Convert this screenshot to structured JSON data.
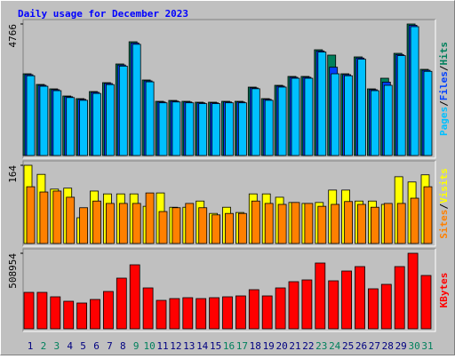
{
  "chart_data": [
    {
      "type": "bar",
      "title": "Daily usage for December 2023",
      "legend_separator": "/",
      "ylim": [
        0,
        4766
      ],
      "yticks": [
        4766
      ],
      "series": [
        {
          "name": "Hits",
          "color": "#00805c",
          "values": [
            2962,
            2576,
            2415,
            2157,
            2061,
            2318,
            2640,
            3317,
            4122,
            2737,
            1964,
            1996,
            1964,
            1932,
            1932,
            1964,
            1964,
            2479,
            2061,
            2544,
            2866,
            2866,
            3832,
            3639,
            2962,
            3574,
            2415,
            2801,
            3703,
            4766,
            3123
          ]
        },
        {
          "name": "Files",
          "color": "#0040ff",
          "values": [
            2930,
            2545,
            2385,
            2130,
            2035,
            2290,
            2610,
            3280,
            4080,
            2705,
            1940,
            1970,
            1940,
            1910,
            1910,
            1940,
            1940,
            2450,
            2035,
            2515,
            2835,
            2835,
            3790,
            3200,
            2930,
            3535,
            2385,
            2660,
            3660,
            4720,
            3090
          ]
        },
        {
          "name": "Pages",
          "color": "#00c0ff",
          "values": [
            2890,
            2510,
            2350,
            2100,
            2000,
            2250,
            2570,
            3240,
            4030,
            2670,
            1910,
            1940,
            1910,
            1880,
            1880,
            1910,
            1910,
            2420,
            2000,
            2480,
            2800,
            2800,
            3750,
            2962,
            2890,
            3490,
            2350,
            2544,
            3620,
            4670,
            3050
          ]
        }
      ]
    },
    {
      "type": "bar",
      "legend_separator": "/",
      "ylim": [
        0,
        164
      ],
      "yticks": [
        164
      ],
      "series": [
        {
          "name": "Visits",
          "color": "#ffff00",
          "values": [
            164,
            145,
            114,
            116,
            54,
            110,
            104,
            104,
            104,
            78,
            106,
            76,
            76,
            89,
            63,
            76,
            65,
            104,
            104,
            97,
            86,
            84,
            86,
            112,
            112,
            89,
            89,
            82,
            140,
            129,
            144
          ]
        },
        {
          "name": "Sites",
          "color": "#ff8000",
          "values": [
            119,
            108,
            110,
            97,
            75,
            89,
            84,
            84,
            84,
            106,
            67,
            75,
            84,
            75,
            60,
            63,
            63,
            89,
            84,
            82,
            86,
            84,
            78,
            82,
            88,
            82,
            76,
            84,
            84,
            95,
            119
          ]
        }
      ]
    },
    {
      "type": "bar",
      "ylim": [
        0,
        508954
      ],
      "yticks": [
        508954
      ],
      "categories": [
        "1",
        "2",
        "3",
        "4",
        "5",
        "6",
        "7",
        "8",
        "9",
        "10",
        "11",
        "12",
        "13",
        "14",
        "15",
        "16",
        "17",
        "18",
        "19",
        "20",
        "21",
        "22",
        "23",
        "24",
        "25",
        "26",
        "27",
        "28",
        "29",
        "30",
        "31"
      ],
      "category_colors": [
        "#000080",
        "#00805c",
        "#00805c",
        "#000080",
        "#000080",
        "#000080",
        "#000080",
        "#000080",
        "#00805c",
        "#00805c",
        "#000080",
        "#000080",
        "#000080",
        "#000080",
        "#000080",
        "#00805c",
        "#00805c",
        "#000080",
        "#000080",
        "#000080",
        "#000080",
        "#000080",
        "#00805c",
        "#00805c",
        "#000080",
        "#000080",
        "#000080",
        "#000080",
        "#000080",
        "#00805c",
        "#00805c"
      ],
      "series": [
        {
          "name": "KBytes",
          "color": "#ff0000",
          "values": [
            245508,
            245508,
            215568,
            185628,
            173652,
            197604,
            251496,
            341316,
            431136,
            275448,
            191616,
            203592,
            209580,
            203592,
            209580,
            215568,
            221556,
            263472,
            221556,
            275448,
            317364,
            329340,
            443112,
            323352,
            389220,
            419160,
            269460,
            299400,
            419160,
            508954,
            359280
          ]
        }
      ]
    }
  ]
}
